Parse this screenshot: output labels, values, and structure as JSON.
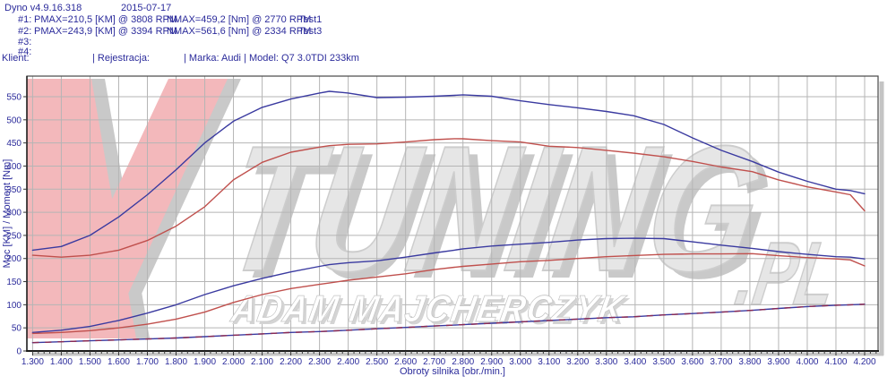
{
  "header": {
    "app_version": "Dyno v4.9.16.318",
    "date": "2015-07-17",
    "runs": [
      {
        "id": "#1:",
        "pmax": "PMAX=210,5 [KM] @ 3808 RPM",
        "nmax": "NMAX=459,2 [Nm] @ 2770 RPM",
        "test": "Test1"
      },
      {
        "id": "#2:",
        "pmax": "PMAX=243,9 [KM] @ 3394 RPM",
        "nmax": "NMAX=561,6 [Nm] @ 2334 RPM",
        "test": "Test3"
      },
      {
        "id": "#3:",
        "pmax": "",
        "nmax": "",
        "test": ""
      },
      {
        "id": "#4:",
        "pmax": "",
        "nmax": "",
        "test": ""
      }
    ],
    "client_line": {
      "klient": "Klient:",
      "rejestracja": "| Rejestracja:",
      "marka_model": "| Marka: Audi | Model: Q7 3.0TDI 233km"
    }
  },
  "watermark": {
    "brand_tuning": "TUNING",
    "brand_pl": ".PL",
    "author": "ADAM MAJCHERCZYK",
    "v_color": "#f3b8bb",
    "shadow_color": "#c9c9c9",
    "letter_fill": "#e6e6e6",
    "letter_edge": "#cdcdcd"
  },
  "chart_data": {
    "type": "line",
    "title": "",
    "xlabel": "Obroty silnika [obr./min.]",
    "ylabel": "Moc [KM] / Moment [Nm]",
    "x_range": [
      1280,
      4247
    ],
    "y_range": [
      0,
      594
    ],
    "grid": true,
    "legend": "none",
    "x_ticks": [
      1300,
      1400,
      1500,
      1600,
      1700,
      1800,
      1900,
      2000,
      2100,
      2200,
      2300,
      2400,
      2500,
      2600,
      2700,
      2800,
      2900,
      3000,
      3100,
      3200,
      3300,
      3400,
      3500,
      3600,
      3700,
      3800,
      3900,
      4000,
      4100,
      4200
    ],
    "x_tick_labels": [
      "1.300",
      "1.400",
      "1.500",
      "1.600",
      "1.700",
      "1.800",
      "1.900",
      "2.000",
      "2.100",
      "2.200",
      "2.300",
      "2.400",
      "2.500",
      "2.600",
      "2.700",
      "2.800",
      "2.900",
      "3.000",
      "3.100",
      "3.200",
      "3.300",
      "3.400",
      "3.500",
      "3.600",
      "3.700",
      "3.800",
      "3.900",
      "4.000",
      "4.100",
      "4.200"
    ],
    "y_ticks": [
      0,
      50,
      100,
      150,
      200,
      250,
      300,
      350,
      400,
      450,
      500,
      550
    ],
    "rpm": [
      1300,
      1400,
      1500,
      1600,
      1700,
      1800,
      1900,
      2000,
      2100,
      2200,
      2300,
      2334,
      2400,
      2500,
      2600,
      2700,
      2770,
      2800,
      2900,
      3000,
      3100,
      3200,
      3300,
      3394,
      3500,
      3600,
      3700,
      3808,
      3900,
      4000,
      4100,
      4150,
      4200
    ],
    "series": [
      {
        "name": "torque-test3",
        "unit": "Nm",
        "color": "#3a3aa0",
        "dashed": false,
        "values": [
          218,
          226,
          250,
          290,
          338,
          392,
          450,
          497,
          527,
          545,
          558,
          561.6,
          558,
          548,
          549,
          551,
          553,
          554,
          551,
          541,
          533,
          526,
          518,
          509,
          490,
          461,
          434,
          410,
          387,
          367,
          350,
          347,
          340
        ]
      },
      {
        "name": "torque-test1",
        "unit": "Nm",
        "color": "#c0504d",
        "dashed": false,
        "values": [
          207,
          203,
          207,
          218,
          239,
          270,
          312,
          370,
          408,
          430,
          441,
          444,
          447,
          448,
          452,
          457,
          459.2,
          459,
          455,
          452,
          443,
          440,
          434,
          428,
          420,
          410,
          398,
          388,
          370,
          355,
          344,
          338,
          303
        ]
      },
      {
        "name": "power-test3",
        "unit": "KM",
        "color": "#3a3aa0",
        "dashed": false,
        "values": [
          40,
          45,
          53,
          66,
          82,
          100,
          122,
          141,
          157,
          171,
          183,
          186.7,
          191,
          195,
          203,
          212,
          218,
          221,
          227,
          231,
          235,
          240,
          243,
          243.9,
          243,
          236,
          229,
          222,
          215,
          209,
          204,
          203,
          199
        ]
      },
      {
        "name": "power-test1",
        "unit": "KM",
        "color": "#c0504d",
        "dashed": false,
        "values": [
          38,
          40,
          44,
          50,
          58,
          69,
          84,
          105,
          122,
          135,
          144,
          147,
          153,
          160,
          167,
          176,
          181,
          183,
          188,
          193,
          196,
          200,
          204,
          206.5,
          209,
          210,
          210,
          210.5,
          206,
          202,
          199,
          197,
          184
        ]
      },
      {
        "name": "aux-trace",
        "unit": "",
        "color": "#3a3aa0",
        "dash_overlay": "#8b2a52",
        "dashed": true,
        "values": [
          18,
          20,
          22,
          24,
          26,
          28,
          31,
          34,
          37,
          40,
          42,
          43,
          45,
          48,
          51,
          54,
          56,
          57,
          60,
          63,
          66,
          69,
          72,
          74,
          78,
          81,
          84,
          88,
          92,
          96,
          99,
          100,
          101
        ]
      }
    ]
  },
  "colors": {
    "text": "#2b2b9b",
    "grid": "#b5b5b5",
    "plot_border": "#474747",
    "axis_line": "#1a1a1a",
    "shadow": "#c4c4c4"
  }
}
